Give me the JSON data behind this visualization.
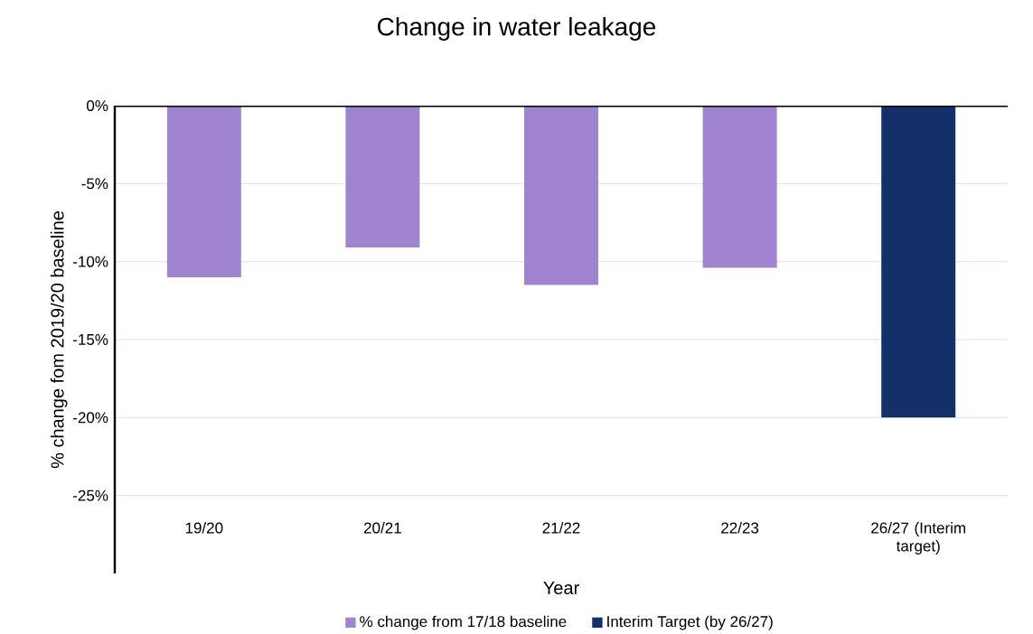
{
  "chart_data": {
    "type": "bar",
    "title": "Change in water leakage",
    "xlabel": "Year",
    "ylabel": "% change fom 2019/20 baseline",
    "categories": [
      "19/20",
      "20/21",
      "21/22",
      "22/23",
      "26/27 (Interim target)"
    ],
    "series": [
      {
        "name": "% change from 17/18 baseline",
        "color": "#a084d0",
        "values": [
          -11.0,
          -9.1,
          -11.5,
          -10.4,
          null
        ]
      },
      {
        "name": "Interim Target (by 26/27)",
        "color": "#13306a",
        "values": [
          null,
          null,
          null,
          null,
          -20
        ]
      }
    ],
    "ylim": [
      -30,
      0
    ],
    "yticks": [
      {
        "value": 0,
        "label": "0%"
      },
      {
        "value": -5,
        "label": "-5%"
      },
      {
        "value": -10,
        "label": "-10%"
      },
      {
        "value": -15,
        "label": "-15%"
      },
      {
        "value": -20,
        "label": "-20%"
      },
      {
        "value": -25,
        "label": "-25%"
      }
    ],
    "grid": "y",
    "legend": "bottom"
  }
}
